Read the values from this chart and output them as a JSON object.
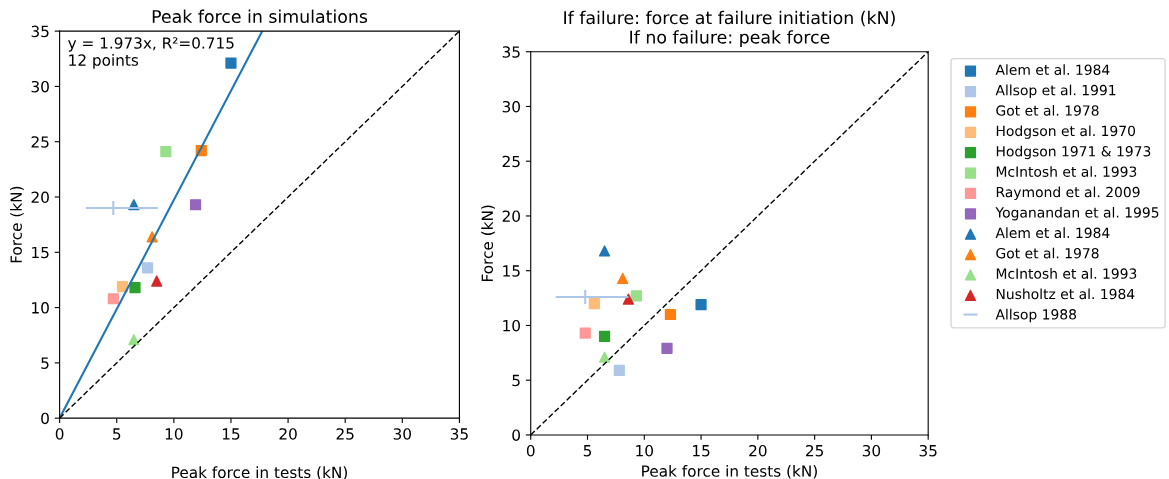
{
  "chart_data": [
    {
      "type": "scatter",
      "title": "Peak force in simulations",
      "xlabel": "Peak force in tests (kN)",
      "ylabel": "Force (kN)",
      "xlim": [
        0,
        35
      ],
      "ylim": [
        0,
        35
      ],
      "xticks": [
        0,
        5,
        10,
        15,
        20,
        25,
        30,
        35
      ],
      "yticks": [
        0,
        5,
        10,
        15,
        20,
        25,
        30,
        35
      ],
      "grid": false,
      "legend": false,
      "annotations": [
        "y = 1.973x, R²=0.715\n12 points"
      ],
      "series": [
        {
          "type": "line",
          "color": "#1f77b4",
          "x": [
            0,
            17.74
          ],
          "values": [
            0,
            35
          ],
          "line_style": "solid",
          "marker": "none"
        },
        {
          "type": "line",
          "color": "#000000",
          "x": [
            0,
            35
          ],
          "values": [
            0,
            35
          ],
          "line_style": "dashed",
          "marker": "none"
        },
        {
          "color": "#1f77b4",
          "marker": "square",
          "x": [
            15.0
          ],
          "values": [
            32.1
          ]
        },
        {
          "color": "#aec7e8",
          "marker": "square",
          "x": [
            7.7
          ],
          "values": [
            13.6
          ]
        },
        {
          "color": "#ff7f0e",
          "marker": "square",
          "x": [
            12.4
          ],
          "values": [
            24.2
          ]
        },
        {
          "color": "#ffbb78",
          "marker": "square",
          "x": [
            5.5
          ],
          "values": [
            11.9
          ]
        },
        {
          "color": "#2ca02c",
          "marker": "square",
          "x": [
            6.6
          ],
          "values": [
            11.8
          ]
        },
        {
          "color": "#98df8a",
          "marker": "square",
          "x": [
            9.3
          ],
          "values": [
            24.1
          ]
        },
        {
          "color": "#ff9896",
          "marker": "square",
          "x": [
            4.7
          ],
          "values": [
            10.8
          ]
        },
        {
          "color": "#9467bd",
          "marker": "square",
          "x": [
            11.9
          ],
          "values": [
            19.3
          ]
        },
        {
          "color": "#1f77b4",
          "marker": "triangle",
          "x": [
            6.5
          ],
          "values": [
            19.3
          ]
        },
        {
          "color": "#ff7f0e",
          "marker": "triangle",
          "x": [
            8.1
          ],
          "values": [
            16.4
          ]
        },
        {
          "color": "#98df8a",
          "marker": "triangle",
          "x": [
            6.5
          ],
          "values": [
            7.1
          ]
        },
        {
          "color": "#d62728",
          "marker": "triangle",
          "x": [
            8.5
          ],
          "values": [
            12.4
          ]
        },
        {
          "color": "#aec7e8",
          "marker": "cross",
          "x": [
            4.7
          ],
          "values": [
            19.0
          ],
          "xerrors": [
            [
              2.3,
              8.6
            ]
          ]
        }
      ]
    },
    {
      "type": "scatter",
      "title": "If failure: force at failure initiation (kN)\nIf no failure: peak force",
      "xlabel": "Peak force in tests (kN)",
      "ylabel": "Force (kN)",
      "xlim": [
        0,
        35
      ],
      "ylim": [
        0,
        35
      ],
      "xticks": [
        0,
        5,
        10,
        15,
        20,
        25,
        30,
        35
      ],
      "yticks": [
        0,
        5,
        10,
        15,
        20,
        25,
        30,
        35
      ],
      "grid": false,
      "legend": "right",
      "series": [
        {
          "type": "line",
          "color": "#000000",
          "x": [
            0,
            35
          ],
          "values": [
            0,
            35
          ],
          "line_style": "dashed",
          "marker": "none"
        },
        {
          "name": "Alem et al. 1984",
          "color": "#1f77b4",
          "marker": "square",
          "x": [
            15.0
          ],
          "values": [
            11.9
          ]
        },
        {
          "name": "Allsop et al. 1991",
          "color": "#aec7e8",
          "marker": "square",
          "x": [
            7.8
          ],
          "values": [
            5.9
          ]
        },
        {
          "name": "Got et al. 1978",
          "color": "#ff7f0e",
          "marker": "square",
          "x": [
            12.3
          ],
          "values": [
            11.0
          ]
        },
        {
          "name": "Hodgson et al. 1970",
          "color": "#ffbb78",
          "marker": "square",
          "x": [
            5.6
          ],
          "values": [
            12.0
          ]
        },
        {
          "name": "Hodgson 1971 & 1973",
          "color": "#2ca02c",
          "marker": "square",
          "x": [
            6.5
          ],
          "values": [
            9.0
          ]
        },
        {
          "name": "McIntosh et al. 1993",
          "color": "#98df8a",
          "marker": "square",
          "x": [
            9.3
          ],
          "values": [
            12.7
          ]
        },
        {
          "name": "Raymond et al. 2009",
          "color": "#ff9896",
          "marker": "square",
          "x": [
            4.8
          ],
          "values": [
            9.3
          ]
        },
        {
          "name": "Yoganandan et al. 1995",
          "color": "#9467bd",
          "marker": "square",
          "x": [
            12.0
          ],
          "values": [
            7.9
          ]
        },
        {
          "name": "Alem et al. 1984",
          "color": "#1f77b4",
          "marker": "triangle",
          "x": [
            6.5
          ],
          "values": [
            16.8
          ]
        },
        {
          "name": "Got et al. 1978",
          "color": "#ff7f0e",
          "marker": "triangle",
          "x": [
            8.1
          ],
          "values": [
            14.3
          ]
        },
        {
          "name": "McIntosh et al. 1993",
          "color": "#98df8a",
          "marker": "triangle",
          "x": [
            6.5
          ],
          "values": [
            7.1
          ]
        },
        {
          "name": "Nusholtz et al. 1984",
          "color": "#d62728",
          "marker": "triangle",
          "x": [
            8.6
          ],
          "values": [
            12.4
          ]
        },
        {
          "name": "Allsop 1988",
          "color": "#aec7e8",
          "marker": "cross",
          "x": [
            4.8
          ],
          "values": [
            12.6
          ],
          "xerrors": [
            [
              2.2,
              8.6
            ]
          ]
        }
      ]
    }
  ]
}
